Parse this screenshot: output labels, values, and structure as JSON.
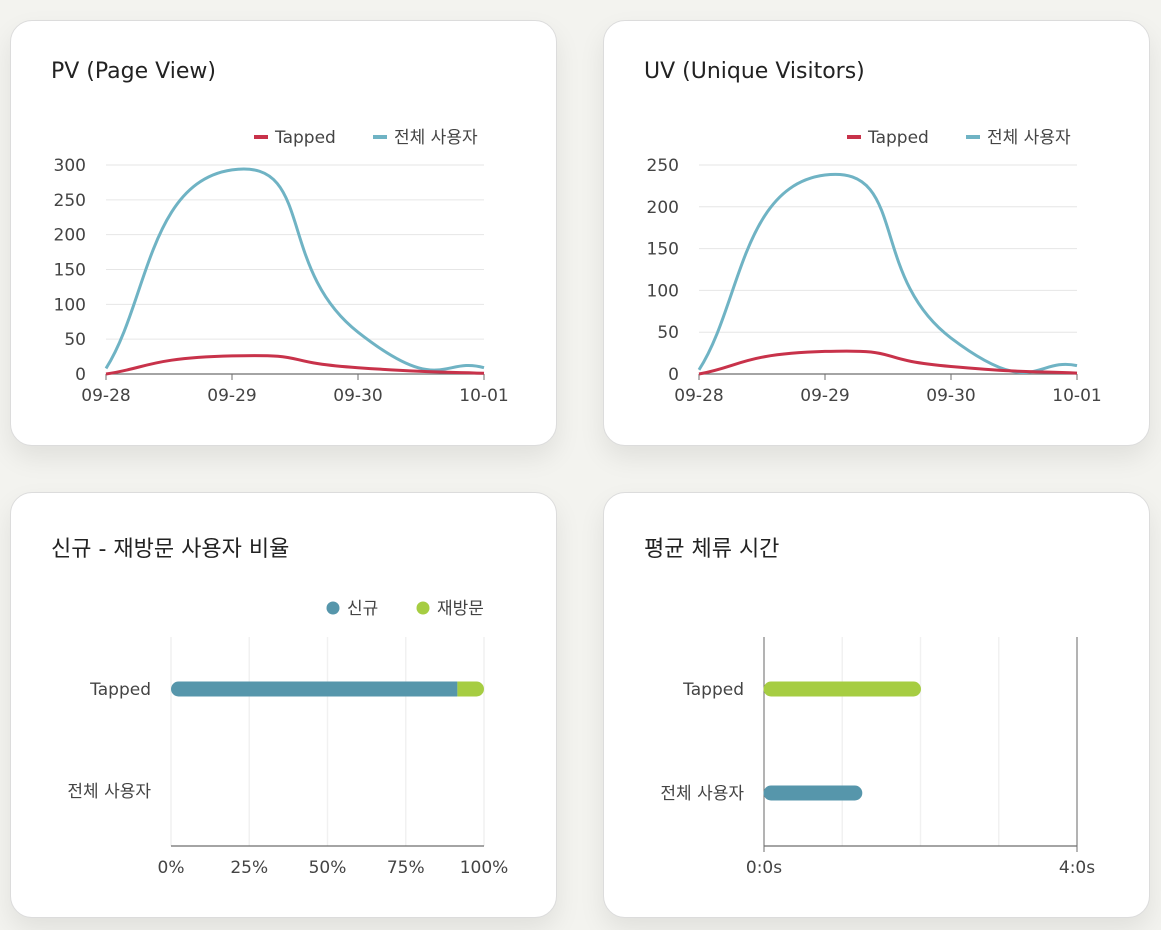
{
  "colors": {
    "tapped_line": "#c8324a",
    "all_users_line": "#6fb3c4",
    "new_users": "#5696ab",
    "returning_users": "#a6cd42",
    "axis": "#6e6e6e",
    "grid": "#e6e6e6",
    "text": "#444444"
  },
  "chart_data": [
    {
      "id": "pv",
      "type": "line",
      "title": "PV (Page View)",
      "categories": [
        "09-28",
        "09-29",
        "09-30",
        "10-01"
      ],
      "ylim": [
        0,
        300
      ],
      "yticks": [
        "0",
        "50",
        "100",
        "150",
        "200",
        "250",
        "300"
      ],
      "series": [
        {
          "name": "Tapped",
          "values": [
            0,
            26,
            9,
            1
          ]
        },
        {
          "name": "전체 사용자",
          "values": [
            8,
            293,
            60,
            9
          ]
        }
      ]
    },
    {
      "id": "uv",
      "type": "line",
      "title": "UV (Unique Visitors)",
      "categories": [
        "09-28",
        "09-29",
        "09-30",
        "10-01"
      ],
      "ylim": [
        0,
        250
      ],
      "yticks": [
        "0",
        "50",
        "100",
        "150",
        "200",
        "250"
      ],
      "series": [
        {
          "name": "Tapped",
          "values": [
            0,
            27,
            9,
            1
          ]
        },
        {
          "name": "전체 사용자",
          "values": [
            5,
            238,
            43,
            10
          ]
        }
      ]
    },
    {
      "id": "ratio",
      "type": "bar",
      "orientation": "horizontal",
      "stacked": true,
      "title": "신규 - 재방문 사용자 비율",
      "categories": [
        "Tapped",
        "전체 사용자"
      ],
      "xlim": [
        0,
        100
      ],
      "xticks": [
        "0%",
        "25%",
        "50%",
        "75%",
        "100%"
      ],
      "series": [
        {
          "name": "신규",
          "values": [
            91.5,
            0
          ]
        },
        {
          "name": "재방문",
          "values": [
            8.5,
            0
          ]
        }
      ]
    },
    {
      "id": "dwell",
      "type": "bar",
      "orientation": "horizontal",
      "title": "평균 체류 시간",
      "categories": [
        "Tapped",
        "전체 사용자"
      ],
      "xlim": [
        0,
        4
      ],
      "xticks": [
        "0:0s",
        "4:0s"
      ],
      "series": [
        {
          "name": "평균 체류 시간",
          "values": [
            2.0,
            1.25
          ]
        }
      ]
    }
  ]
}
